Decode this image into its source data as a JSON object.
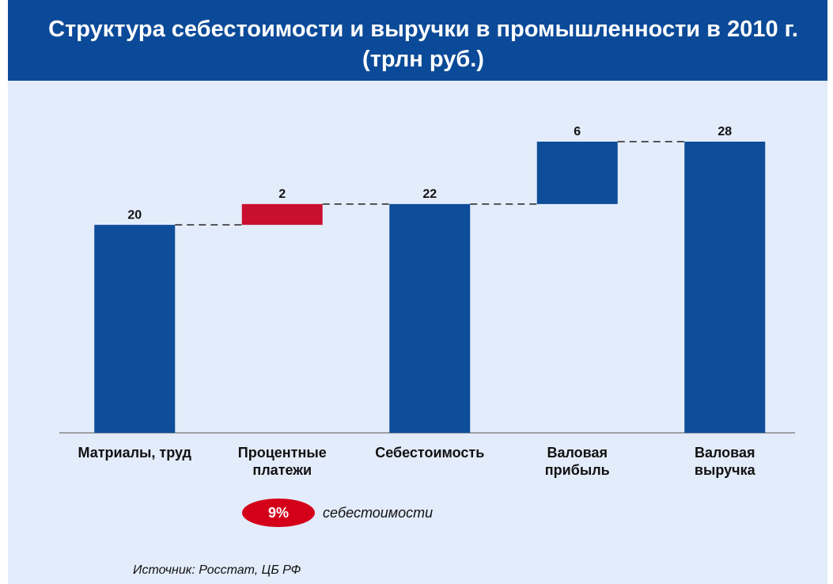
{
  "chart_data": {
    "type": "waterfall",
    "title": "Структура себестоимости и выручки в промышленности в 2010 г. (трлн руб.)",
    "categories": [
      "Матриалы, труд",
      "Процентные\nплатежи",
      "Себестоимость",
      "Валовая\nприбыль",
      "Валовая\nвыручка"
    ],
    "values": [
      20,
      2,
      22,
      6,
      28
    ],
    "measures": [
      "absolute",
      "relative",
      "absolute",
      "relative",
      "absolute"
    ],
    "colors": [
      "#0d4d9a",
      "#c8102e",
      "#0d4d9a",
      "#0d4d9a",
      "#0d4d9a"
    ],
    "annotation": {
      "badge": "9%",
      "text": "себестоимости",
      "color": "#d4001a"
    },
    "source": "Источник: Росстат, ЦБ РФ"
  }
}
